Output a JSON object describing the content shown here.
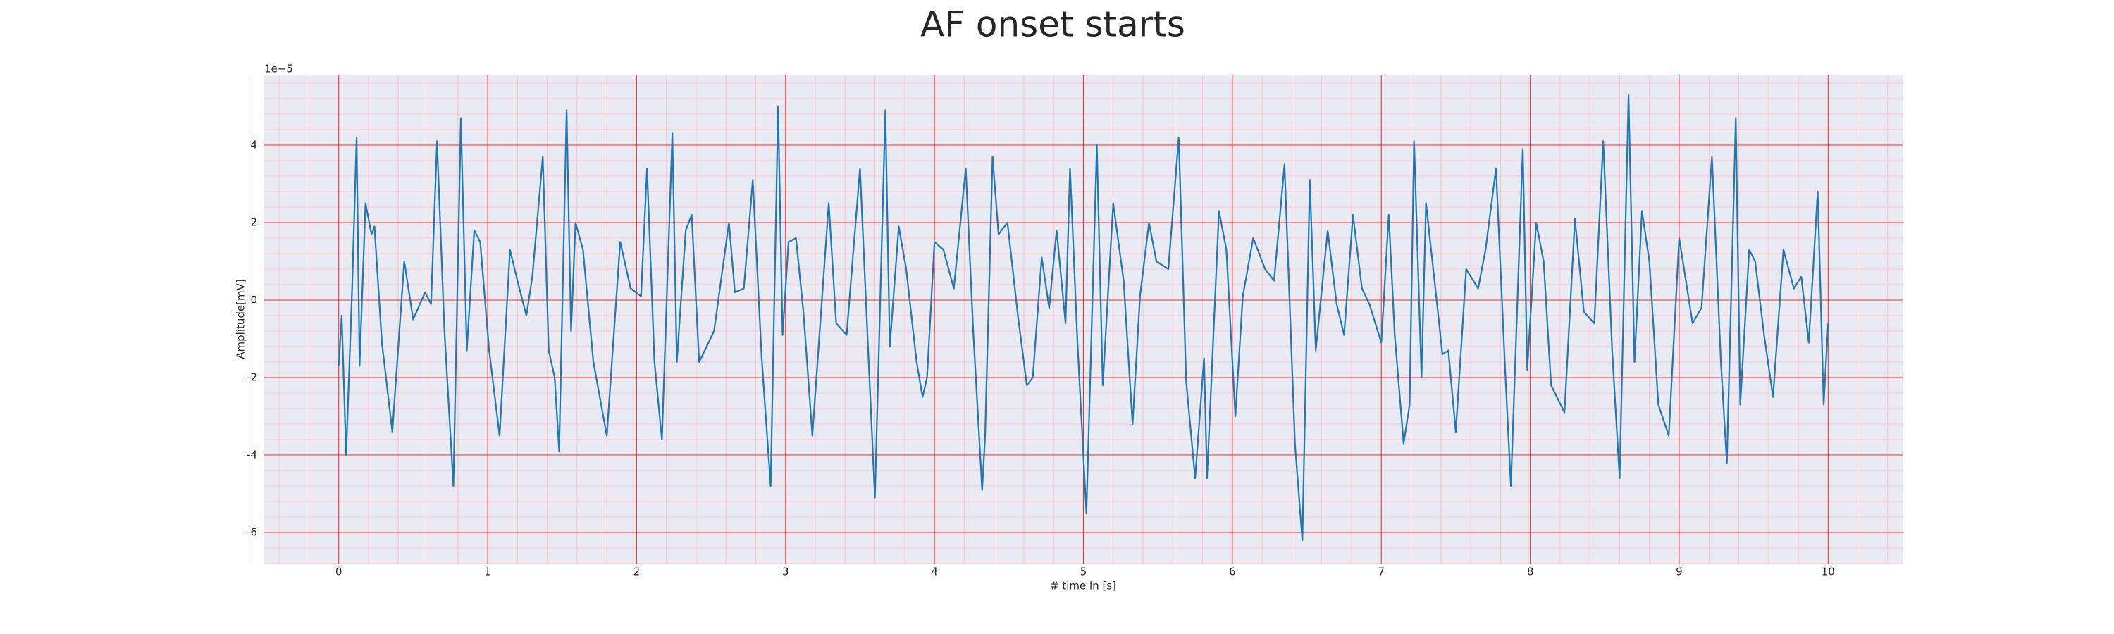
{
  "chart_data": {
    "type": "line",
    "title": "AF onset starts",
    "xlabel": "# time in [s]",
    "ylabel": "Amplitude[mV]",
    "offset_label": "1e−5",
    "background": "#eaeaf2",
    "grid": true,
    "grid_color": "#ff0000",
    "minor_grid": true,
    "minor_grid_color": "#ffb6c1",
    "xlim": [
      -0.5,
      10.5
    ],
    "xticks": [
      0,
      1,
      2,
      3,
      4,
      5,
      6,
      7,
      8,
      9,
      10
    ],
    "ylim": [
      -6.8,
      5.8
    ],
    "yticks": [
      -6,
      -4,
      -2,
      0,
      2,
      4
    ],
    "x": [
      0,
      0.02,
      0.05,
      0.09,
      0.12,
      0.14,
      0.18,
      0.22,
      0.24,
      0.29,
      0.36,
      0.44,
      0.5,
      0.58,
      0.62,
      0.66,
      0.71,
      0.77,
      0.82,
      0.86,
      0.91,
      0.95,
      1.01,
      1.08,
      1.15,
      1.2,
      1.26,
      1.3,
      1.37,
      1.41,
      1.45,
      1.48,
      1.53,
      1.56,
      1.59,
      1.64,
      1.71,
      1.8,
      1.89,
      1.96,
      2.03,
      2.07,
      2.12,
      2.17,
      2.24,
      2.27,
      2.33,
      2.37,
      2.42,
      2.52,
      2.62,
      2.66,
      2.72,
      2.78,
      2.84,
      2.9,
      2.95,
      2.98,
      3.02,
      3.07,
      3.12,
      3.18,
      3.29,
      3.34,
      3.41,
      3.5,
      3.55,
      3.6,
      3.67,
      3.7,
      3.76,
      3.81,
      3.88,
      3.92,
      3.95,
      4.0,
      4.06,
      4.13,
      4.21,
      4.26,
      4.32,
      4.34,
      4.39,
      4.43,
      4.49,
      4.56,
      4.62,
      4.66,
      4.72,
      4.77,
      4.82,
      4.88,
      4.91,
      4.96,
      5.02,
      5.09,
      5.13,
      5.2,
      5.27,
      5.33,
      5.38,
      5.44,
      5.49,
      5.57,
      5.64,
      5.69,
      5.75,
      5.81,
      5.83,
      5.91,
      5.96,
      6.02,
      6.07,
      6.14,
      6.22,
      6.28,
      6.35,
      6.42,
      6.47,
      6.52,
      6.56,
      6.64,
      6.7,
      6.75,
      6.81,
      6.87,
      6.92,
      7.0,
      7.05,
      7.09,
      7.15,
      7.19,
      7.22,
      7.27,
      7.3,
      7.38,
      7.41,
      7.45,
      7.5,
      7.57,
      7.65,
      7.7,
      7.77,
      7.83,
      7.87,
      7.95,
      7.98,
      8.04,
      8.09,
      8.14,
      8.23,
      8.3,
      8.36,
      8.43,
      8.49,
      8.55,
      8.6,
      8.66,
      8.7,
      8.75,
      8.8,
      8.86,
      8.93,
      9.0,
      9.09,
      9.15,
      9.22,
      9.28,
      9.32,
      9.38,
      9.41,
      9.47,
      9.51,
      9.57,
      9.63,
      9.7,
      9.77,
      9.82,
      9.87,
      9.93,
      9.97,
      10.0
    ],
    "series": [
      {
        "color": "#1f77b4",
        "values": [
          -1.7,
          -0.4,
          -4.0,
          0.3,
          4.2,
          -1.7,
          2.5,
          1.7,
          1.9,
          -1.1,
          -3.4,
          1.0,
          -0.5,
          0.2,
          -0.1,
          4.1,
          -0.8,
          -4.8,
          4.7,
          -1.3,
          1.8,
          1.5,
          -1.3,
          -3.5,
          1.3,
          0.5,
          -0.4,
          0.6,
          3.7,
          -1.3,
          -2.0,
          -3.9,
          4.9,
          -0.8,
          2.0,
          1.3,
          -1.6,
          -3.5,
          1.5,
          0.3,
          0.1,
          3.4,
          -1.6,
          -3.6,
          4.3,
          -1.6,
          1.8,
          2.2,
          -1.6,
          -0.8,
          2.0,
          0.2,
          0.3,
          3.1,
          -1.5,
          -4.8,
          5.0,
          -0.9,
          1.5,
          1.6,
          -0.3,
          -3.5,
          2.5,
          -0.6,
          -0.9,
          3.4,
          -0.9,
          -5.1,
          4.9,
          -1.2,
          1.9,
          0.8,
          -1.6,
          -2.5,
          -2.0,
          1.5,
          1.3,
          0.3,
          3.4,
          -0.8,
          -4.9,
          -3.5,
          3.7,
          1.7,
          2.0,
          -0.4,
          -2.2,
          -2.0,
          1.1,
          -0.2,
          1.8,
          -0.6,
          3.4,
          -1.1,
          -5.5,
          4.0,
          -2.2,
          2.5,
          0.5,
          -3.2,
          0.1,
          2.0,
          1.0,
          0.8,
          4.2,
          -2.1,
          -4.6,
          -1.5,
          -4.6,
          2.3,
          1.3,
          -3.0,
          0.1,
          1.6,
          0.8,
          0.5,
          3.5,
          -3.7,
          -6.2,
          3.1,
          -1.3,
          1.8,
          -0.1,
          -0.9,
          2.2,
          0.3,
          -0.1,
          -1.1,
          2.2,
          -0.9,
          -3.7,
          -2.7,
          4.1,
          -2.0,
          2.5,
          -0.3,
          -1.4,
          -1.3,
          -3.4,
          0.8,
          0.3,
          1.3,
          3.4,
          -1.7,
          -4.8,
          3.9,
          -1.8,
          2.0,
          1.0,
          -2.2,
          -2.9,
          2.1,
          -0.3,
          -0.6,
          4.1,
          -1.3,
          -4.6,
          5.3,
          -1.6,
          2.3,
          1.0,
          -2.7,
          -3.5,
          1.6,
          -0.6,
          -0.2,
          3.7,
          -1.6,
          -4.2,
          4.7,
          -2.7,
          1.3,
          1.0,
          -0.9,
          -2.5,
          1.3,
          0.3,
          0.6,
          -1.1,
          2.8,
          -2.7,
          -0.6
        ]
      }
    ]
  }
}
